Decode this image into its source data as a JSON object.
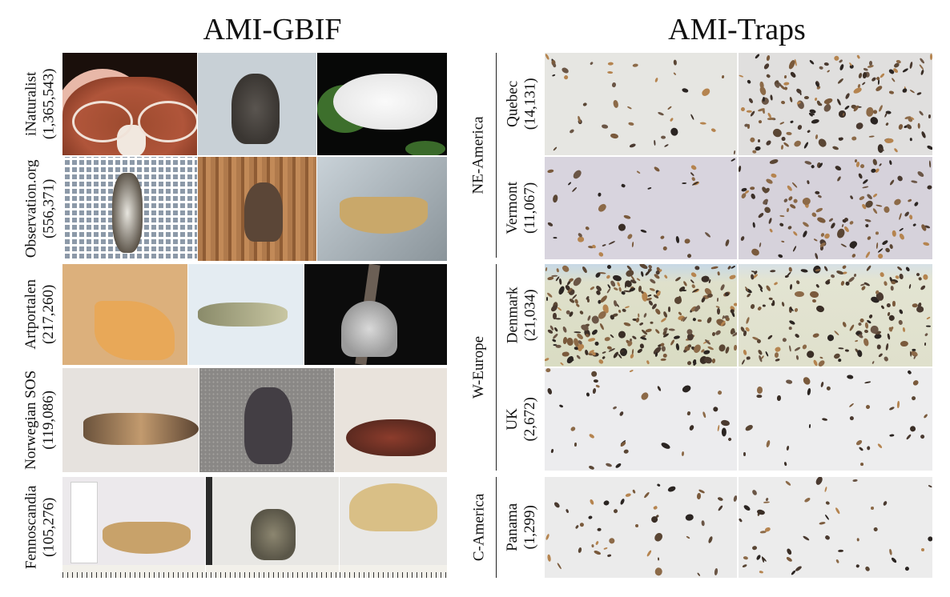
{
  "left_title": "AMI-GBIF",
  "right_title": "AMI-Traps",
  "gbif_sources": [
    {
      "name": "iNaturalist",
      "count": "(1,365,543)"
    },
    {
      "name": "Observation.org",
      "count": "(556,371)"
    },
    {
      "name": "Artportalen",
      "count": "(217,260)"
    },
    {
      "name": "Norwegian SOS",
      "count": "(119,086)"
    },
    {
      "name": "Fennoscandia",
      "count": "(105,276)"
    }
  ],
  "trap_regions": [
    {
      "name": "NE-America"
    },
    {
      "name": "W-Europe"
    },
    {
      "name": "C-America"
    }
  ],
  "trap_sites": [
    {
      "name": "Quebec",
      "count": "(14,131)"
    },
    {
      "name": "Vermont",
      "count": "(11,067)"
    },
    {
      "name": "Denmark",
      "count": "(21,034)"
    },
    {
      "name": "UK",
      "count": "(2,672)"
    },
    {
      "name": "Panama",
      "count": "(1,299)"
    }
  ]
}
